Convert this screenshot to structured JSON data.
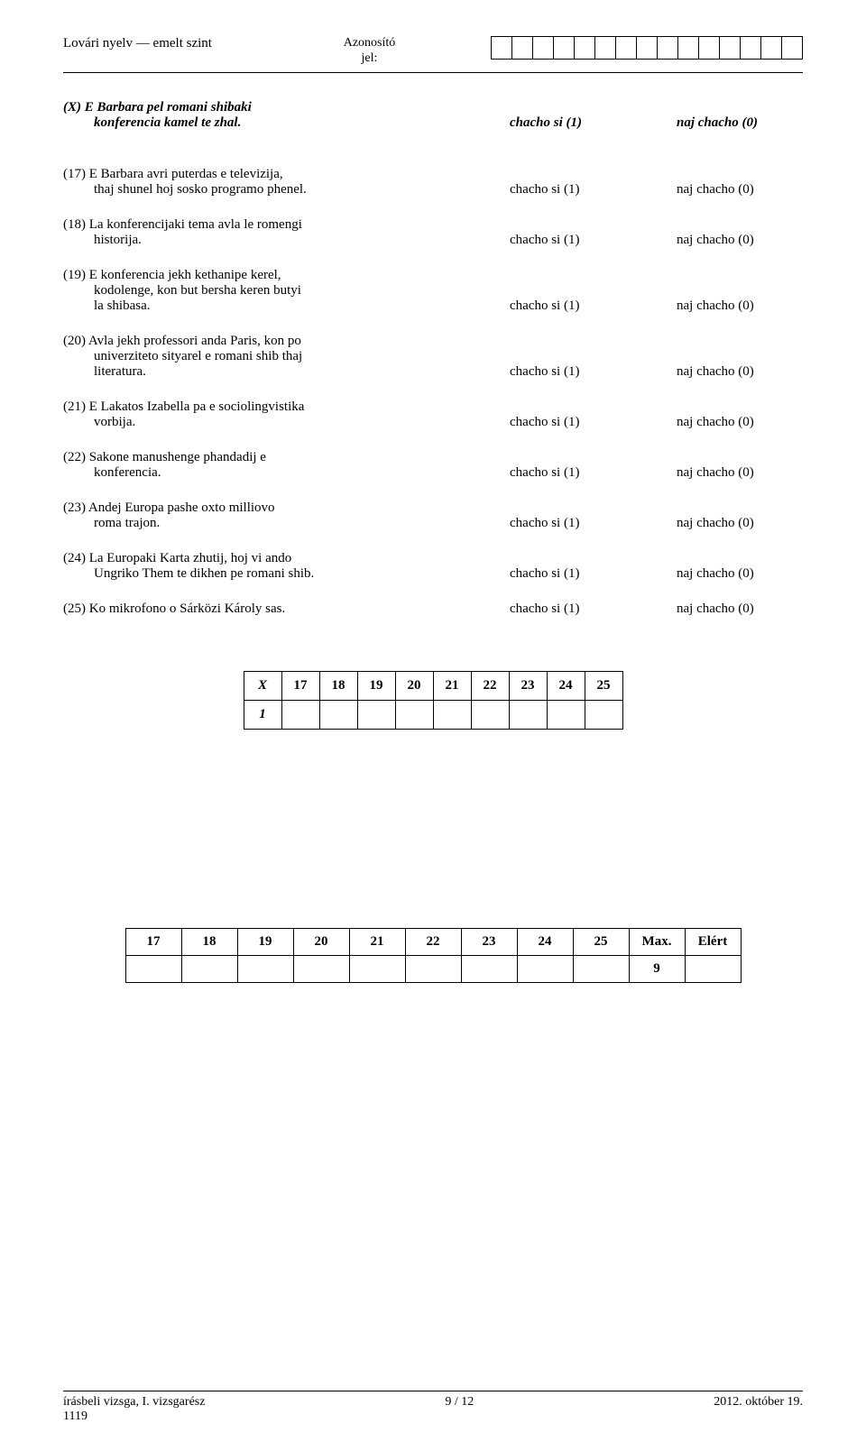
{
  "header": {
    "left": "Lovári nyelv — emelt szint",
    "center_line1": "Azonosító",
    "center_line2": "jel:",
    "id_cells": 15
  },
  "example": {
    "line1": "(X) E Barbara pel romani shibaki",
    "line2": "konferencia kamel te zhal.",
    "chacho": "chacho si (1)",
    "najchacho": "naj chacho (0)"
  },
  "questions": [
    {
      "num": "(17)",
      "line1": "(17) E Barbara avri puterdas e televizija,",
      "line2": "thaj shunel hoj sosko programo phenel.",
      "chacho": "chacho si (1)",
      "najchacho": "naj chacho (0)"
    },
    {
      "num": "(18)",
      "line1": "(18) La konferencijaki tema avla le romengi",
      "line2": "historija.",
      "chacho": "chacho si (1)",
      "najchacho": "naj chacho (0)"
    },
    {
      "num": "(19)",
      "line1": "(19) E konferencia jekh kethanipe kerel,",
      "line2": "kodolenge, kon but bersha keren butyi",
      "line3": "la shibasa.",
      "chacho": "chacho si (1)",
      "najchacho": "naj chacho (0)"
    },
    {
      "num": "(20)",
      "line1": "(20) Avla jekh professori anda Paris, kon po",
      "line2": "univerziteto sityarel e romani shib thaj",
      "line3": "literatura.",
      "chacho": "chacho si (1)",
      "najchacho": "naj chacho (0)"
    },
    {
      "num": "(21)",
      "line1": "(21) E Lakatos Izabella pa e sociolingvistika",
      "line2": "vorbija.",
      "chacho": "chacho si (1)",
      "najchacho": "naj chacho (0)"
    },
    {
      "num": "(22)",
      "line1": "(22) Sakone manushenge phandadij e",
      "line2": "konferencia.",
      "chacho": "chacho si (1)",
      "najchacho": "naj chacho (0)"
    },
    {
      "num": "(23)",
      "line1": "(23) Andej Europa pashe oxto milliovo",
      "line2": "roma trajon.",
      "chacho": "chacho si (1)",
      "najchacho": "naj chacho (0)"
    },
    {
      "num": "(24)",
      "line1": "(24) La Europaki Karta zhutij, hoj vi ando",
      "line2": "Ungriko Them te dikhen pe romani shib.",
      "chacho": "chacho si (1)",
      "najchacho": "naj chacho (0)"
    },
    {
      "num": "(25)",
      "line1": "(25) Ko mikrofono o Sárközi Károly sas.",
      "line2": "",
      "chacho": "chacho si (1)",
      "najchacho": "naj chacho (0)"
    }
  ],
  "score_table": {
    "row1": [
      "X",
      "17",
      "18",
      "19",
      "20",
      "21",
      "22",
      "23",
      "24",
      "25"
    ],
    "row2_label": "1"
  },
  "bottom_table": {
    "row1": [
      "17",
      "18",
      "19",
      "20",
      "21",
      "22",
      "23",
      "24",
      "25",
      "Max.",
      "Elért"
    ],
    "row2_max": "9"
  },
  "footer": {
    "left_line1": "írásbeli vizsga, I. vizsgarész",
    "left_line2": "1119",
    "center": "9 / 12",
    "right": "2012. október 19."
  }
}
